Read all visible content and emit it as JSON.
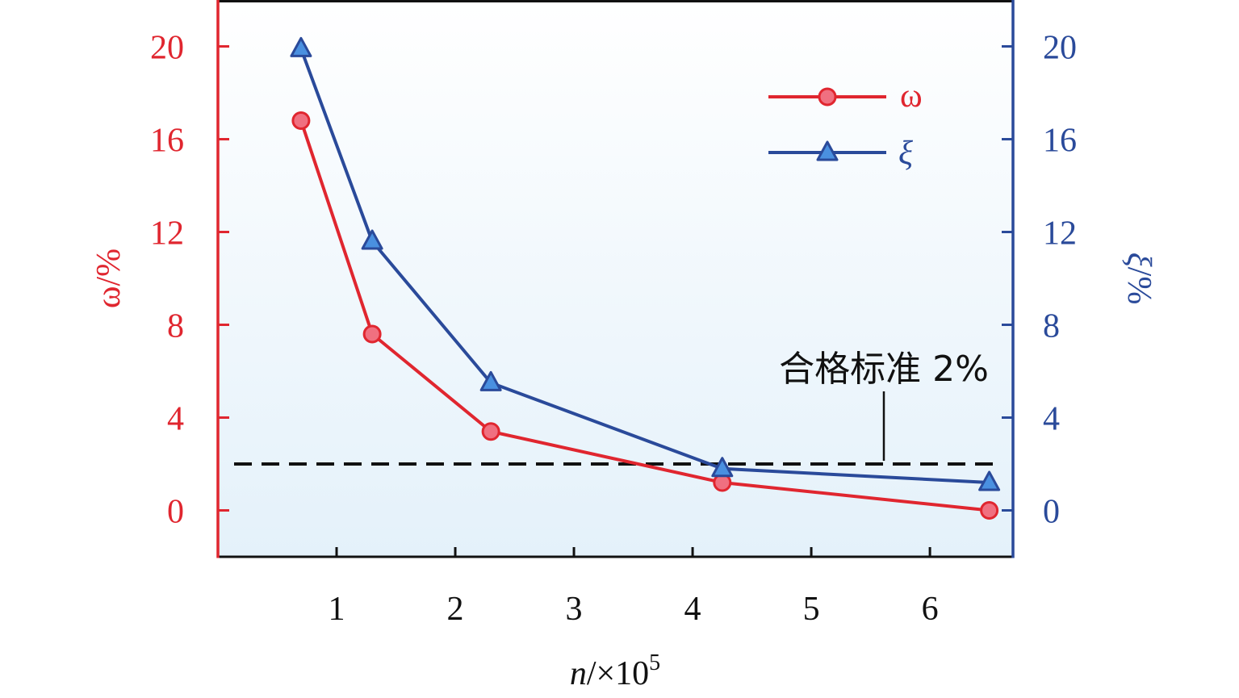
{
  "chart_data": {
    "type": "line",
    "x": [
      0.7,
      1.3,
      2.3,
      4.25,
      6.5
    ],
    "xlim": [
      0.0,
      6.7
    ],
    "xticks": [
      "1",
      "2",
      "3",
      "4",
      "5",
      "6"
    ],
    "xtick_values": [
      1,
      2,
      3,
      4,
      5,
      6
    ],
    "xlabel_var": "n",
    "xlabel_unit": "/×10",
    "xlabel_exp": "5",
    "left_axis": {
      "label_var": "ω",
      "label_unit": "/%",
      "ylim": [
        -2,
        22
      ],
      "ticks": [
        "0",
        "4",
        "8",
        "12",
        "16",
        "20"
      ],
      "tick_values": [
        0,
        4,
        8,
        12,
        16,
        20
      ],
      "color": "#e0262f"
    },
    "right_axis": {
      "label_var": "ξ",
      "label_unit": "/%",
      "ylim": [
        -2,
        22
      ],
      "ticks": [
        "0",
        "4",
        "8",
        "12",
        "16",
        "20"
      ],
      "tick_values": [
        0,
        4,
        8,
        12,
        16,
        20
      ],
      "color": "#2a4a9a"
    },
    "series": [
      {
        "name": "ω",
        "axis": "left",
        "values": [
          16.8,
          7.6,
          3.4,
          1.2,
          0.0
        ],
        "color": "#e0262f",
        "marker_fill": "#f07080",
        "marker": "circle"
      },
      {
        "name": "ξ",
        "axis": "right",
        "values": [
          19.9,
          11.6,
          5.5,
          1.8,
          1.2
        ],
        "color": "#2a4a9a",
        "marker_fill": "#4a90e0",
        "marker": "triangle"
      }
    ],
    "reference_line": {
      "value": 2,
      "label": "合格标准 2%",
      "style": "dashed",
      "color": "#111111"
    },
    "legend_position": "top-right",
    "grid": false,
    "background_gradient": [
      "#ffffff",
      "#e4f1fa"
    ]
  }
}
